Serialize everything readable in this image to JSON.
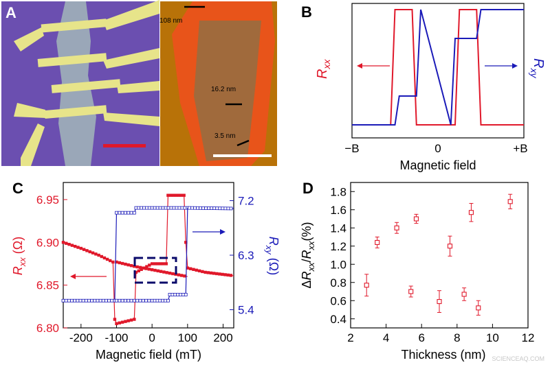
{
  "panels": {
    "a": {
      "label": "A",
      "colors": {
        "substrate": "#6b4fb0",
        "electrode": "#e7e48a",
        "flake": "#9aa7b8",
        "scalebar": "#e0182a",
        "afm_bg": "#b87208",
        "afm_flake_edge": "#e8541a",
        "afm_flake": "#a06a3c"
      },
      "annotations": [
        "108 nm",
        "16.2 nm",
        "3.5 nm"
      ]
    },
    "b": {
      "label": "B",
      "ylabel_left": "R",
      "ylabel_left_sub": "xx",
      "ylabel_right": "R",
      "ylabel_right_sub": "xy",
      "xlabel": "Magnetic field",
      "xticks": [
        "−B",
        "0",
        "+B"
      ],
      "colors": {
        "rxx": "#e0182a",
        "rxy": "#1a1ab8"
      }
    },
    "c": {
      "label": "C",
      "colors": {
        "rxx": "#e0182a",
        "rxy": "#1a1ab8",
        "box": "#0a0a6a"
      }
    },
    "d": {
      "label": "D",
      "colors": {
        "points": "#e0182a"
      }
    }
  },
  "watermark": "SCIENCEAQ.COM",
  "chart_data": [
    {
      "type": "line",
      "panel": "B",
      "xlabel": "Magnetic field",
      "ylabel_left": "Rxx",
      "ylabel_right": "Rxy",
      "xticks": [
        "−B",
        "0",
        "+B"
      ],
      "xlim": [
        -1,
        1
      ],
      "ylim": [
        0,
        1
      ],
      "series": [
        {
          "axis": "left",
          "x": [
            -1,
            -0.55,
            -0.5,
            -0.3,
            -0.25,
            0.2,
            0.25,
            0.45,
            0.5,
            1
          ],
          "values": [
            0,
            0,
            1,
            1,
            0,
            0,
            1,
            1,
            0,
            0
          ]
        },
        {
          "axis": "right",
          "x": [
            -1,
            -0.5,
            -0.45,
            -0.25,
            -0.2,
            0.15,
            0.2,
            0.45,
            0.5,
            1
          ],
          "values": [
            0,
            0,
            0.25,
            0.25,
            1,
            0,
            0.75,
            0.75,
            1,
            1
          ]
        }
      ]
    },
    {
      "type": "scatter",
      "panel": "C",
      "xlabel": "Magnetic field (mT)",
      "ylabel_left": "Rxx (Ω)",
      "ylabel_right": "Rxy (Ω)",
      "xlim": [
        -250,
        230
      ],
      "ylim_left": [
        6.8,
        6.97
      ],
      "ylim_right": [
        5.1,
        7.5
      ],
      "xticks": [
        -200,
        -100,
        0,
        100,
        200
      ],
      "yticks_left": [
        6.8,
        6.85,
        6.9,
        6.95
      ],
      "yticks_right": [
        5.4,
        6.3,
        7.2
      ],
      "series": [
        {
          "name": "Rxx sweep down",
          "axis": "left",
          "x": [
            -250,
            -200,
            -150,
            -110,
            -105,
            -100,
            -50,
            -45,
            0,
            40,
            45,
            90,
            95,
            100,
            150,
            230
          ],
          "values": [
            6.9,
            6.893,
            6.885,
            6.877,
            6.81,
            6.805,
            6.81,
            6.865,
            6.875,
            6.875,
            6.955,
            6.955,
            6.9,
            6.87,
            6.865,
            6.861
          ]
        },
        {
          "name": "Rxx sweep up",
          "axis": "left",
          "x": [
            -100,
            -50,
            0,
            50,
            100
          ],
          "values": [
            6.877,
            6.872,
            6.868,
            6.864,
            6.86
          ]
        },
        {
          "name": "Rxy sweep",
          "axis": "right",
          "x": [
            -250,
            -105,
            -100,
            -50,
            -45,
            0,
            100,
            105,
            230
          ],
          "values": [
            5.55,
            5.55,
            7.0,
            7.0,
            7.08,
            7.08,
            7.08,
            7.08,
            7.07
          ]
        },
        {
          "name": "Rxy sweep return",
          "axis": "right",
          "x": [
            -100,
            -50,
            0,
            45,
            50,
            95,
            100
          ],
          "values": [
            5.55,
            5.55,
            5.55,
            5.55,
            5.65,
            5.65,
            7.08
          ]
        }
      ]
    },
    {
      "type": "scatter",
      "panel": "D",
      "xlabel": "Thickness (nm)",
      "ylabel": "ΔRxx/Rxx(%)",
      "xlim": [
        2,
        12
      ],
      "ylim": [
        0.3,
        1.9
      ],
      "xticks": [
        2,
        4,
        6,
        8,
        10,
        12
      ],
      "yticks": [
        0.4,
        0.6,
        0.8,
        1.0,
        1.2,
        1.4,
        1.6,
        1.8
      ],
      "series": [
        {
          "x": [
            2.9,
            3.5,
            4.6,
            5.4,
            5.7,
            7.0,
            7.6,
            8.4,
            8.8,
            9.2,
            11.0
          ],
          "values": [
            0.77,
            1.24,
            1.4,
            0.7,
            1.5,
            0.59,
            1.2,
            0.67,
            1.57,
            0.52,
            1.69
          ],
          "errors": [
            0.12,
            0.06,
            0.06,
            0.06,
            0.05,
            0.12,
            0.11,
            0.07,
            0.1,
            0.08,
            0.08
          ]
        }
      ]
    }
  ]
}
